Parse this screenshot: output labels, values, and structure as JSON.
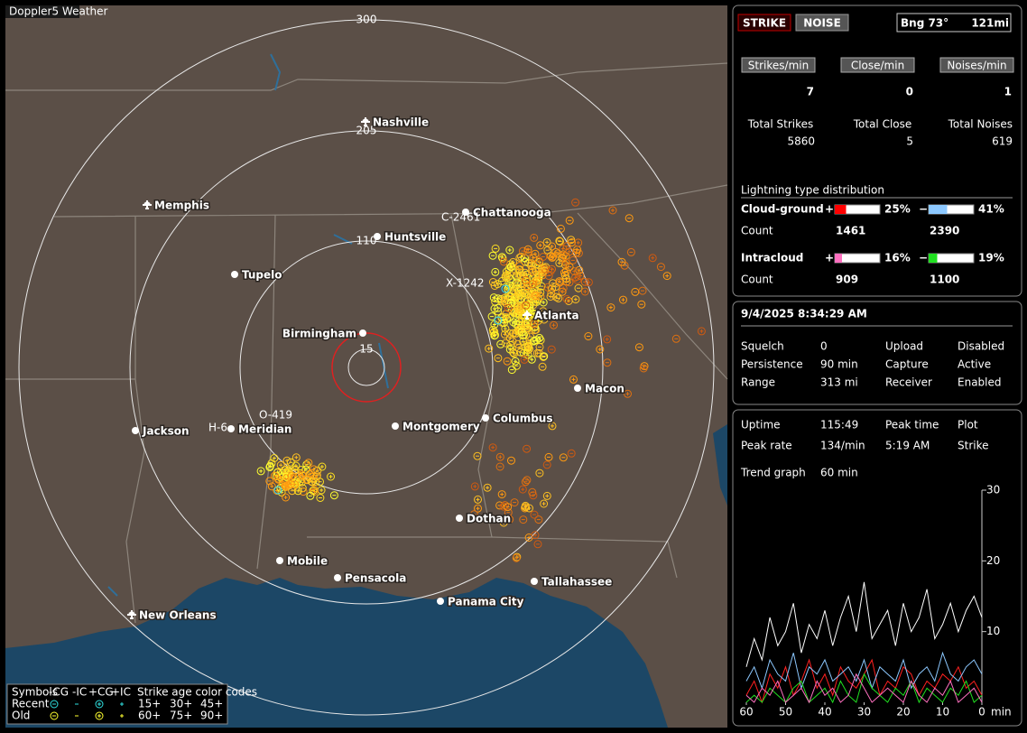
{
  "app_title": "Doppler5 Weather",
  "map": {
    "rings": [
      300,
      205,
      110,
      15
    ],
    "cities": [
      "Nashville",
      "Memphis",
      "Chattanooga",
      "Huntsville",
      "Tupelo",
      "Birmingham",
      "Atlanta",
      "Macon",
      "Columbus",
      "Montgomery",
      "Meridian",
      "Jackson",
      "Dothan",
      "Mobile",
      "Pensacola",
      "Tallahassee",
      "Panama City",
      "New Orleans"
    ],
    "strike_tags": [
      "C-2461",
      "X-1242",
      "O-419",
      "H-6"
    ],
    "legend": {
      "title": "Symbols",
      "types": [
        "-CG",
        "-IC",
        "+CG",
        "+IC"
      ],
      "age_title": "Strike age color codes",
      "rows": [
        {
          "label": "Recent",
          "ages": [
            "15+",
            "30+",
            "45+"
          ]
        },
        {
          "label": "Old",
          "ages": [
            "60+",
            "75+",
            "90+"
          ]
        }
      ]
    }
  },
  "status": {
    "buttons": [
      "STRIKE",
      "NOISE"
    ],
    "bearing": "Bng 73°",
    "distance": "121mi"
  },
  "rates": [
    {
      "label": "Strikes/min",
      "value": 7
    },
    {
      "label": "Close/min",
      "value": 0
    },
    {
      "label": "Noises/min",
      "value": 1
    }
  ],
  "totals": [
    {
      "label": "Total Strikes",
      "value": 5860
    },
    {
      "label": "Total Close",
      "value": 5
    },
    {
      "label": "Total Noises",
      "value": 619
    }
  ],
  "distribution": {
    "title": "Lightning type distribution",
    "count_label": "Count",
    "rows": [
      {
        "label": "Cloud-ground",
        "pos": {
          "sign": "+",
          "value": 25,
          "label": "25%",
          "count": 1461
        },
        "neg": {
          "sign": "−",
          "value": 41,
          "label": "41%",
          "count": 2390
        }
      },
      {
        "label": "Intracloud",
        "pos": {
          "sign": "+",
          "value": 16,
          "label": "16%",
          "count": 909
        },
        "neg": {
          "sign": "−",
          "value": 19,
          "label": "19%",
          "count": 1100
        }
      }
    ]
  },
  "datetime": "9/4/2025 8:34:29 AM",
  "settings": [
    [
      "Squelch",
      0,
      "Upload",
      "Disabled"
    ],
    [
      "Persistence",
      "90 min",
      "Capture",
      "Active"
    ],
    [
      "Range",
      "313 mi",
      "Receiver",
      "Enabled"
    ]
  ],
  "stats": [
    [
      "Uptime",
      "115:49",
      "Peak time",
      "Plot"
    ],
    [
      "Peak rate",
      "134/min",
      "5:19 AM",
      "Strike"
    ],
    [
      "Trend graph",
      "60 min"
    ]
  ],
  "trend": {
    "ylim": [
      0,
      30
    ],
    "yticks": [
      30,
      20,
      10
    ],
    "xlim": [
      60,
      0
    ],
    "xticks": [
      60,
      50,
      40,
      30,
      20,
      10,
      0
    ],
    "x_unit": "min",
    "x": [
      60,
      58,
      56,
      54,
      52,
      50,
      48,
      46,
      44,
      42,
      40,
      38,
      36,
      34,
      32,
      30,
      28,
      26,
      24,
      22,
      20,
      18,
      16,
      14,
      12,
      10,
      8,
      6,
      4,
      2,
      0
    ],
    "series": [
      {
        "color": "#ffffff",
        "values": [
          5,
          9,
          6,
          12,
          8,
          10,
          14,
          7,
          11,
          9,
          13,
          8,
          12,
          15,
          10,
          17,
          9,
          11,
          13,
          8,
          14,
          10,
          12,
          16,
          9,
          11,
          14,
          10,
          13,
          15,
          12
        ]
      },
      {
        "color": "#ff2020",
        "values": [
          1,
          3,
          0,
          4,
          2,
          5,
          1,
          3,
          6,
          2,
          4,
          1,
          5,
          3,
          2,
          4,
          6,
          1,
          3,
          2,
          5,
          4,
          1,
          3,
          2,
          4,
          3,
          5,
          2,
          3,
          1
        ]
      },
      {
        "color": "#8cc8ff",
        "values": [
          3,
          5,
          2,
          6,
          4,
          3,
          7,
          2,
          5,
          4,
          6,
          3,
          4,
          5,
          3,
          6,
          2,
          5,
          4,
          3,
          6,
          2,
          4,
          5,
          3,
          7,
          4,
          3,
          5,
          6,
          4
        ]
      },
      {
        "color": "#20e020",
        "values": [
          0,
          1,
          0,
          2,
          1,
          0,
          2,
          3,
          0,
          1,
          2,
          0,
          3,
          1,
          0,
          4,
          2,
          1,
          0,
          2,
          1,
          3,
          0,
          2,
          1,
          0,
          2,
          1,
          3,
          0,
          1
        ]
      },
      {
        "color": "#ff70c0",
        "values": [
          1,
          0,
          2,
          1,
          3,
          0,
          1,
          2,
          0,
          3,
          1,
          2,
          0,
          1,
          4,
          2,
          0,
          1,
          2,
          1,
          0,
          3,
          1,
          0,
          2,
          1,
          3,
          0,
          1,
          2,
          0
        ]
      }
    ]
  }
}
